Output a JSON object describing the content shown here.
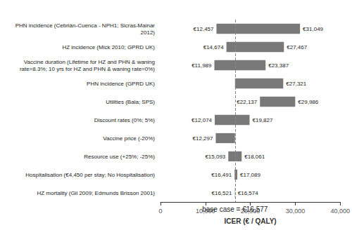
{
  "chart_data": {
    "type": "bar",
    "orientation": "horizontal",
    "xlabel": "ICER (€ / QALY)",
    "xlim": [
      0,
      40000
    ],
    "xticks": [
      0,
      {
        "value": 10000,
        "label": "10,000"
      },
      {
        "value": 20000,
        "label": "20,000"
      },
      {
        "value": 30000,
        "label": "30,000"
      },
      {
        "value": 40000,
        "label": "40,000"
      }
    ],
    "color": "#787878",
    "grid": false,
    "data_labels": true,
    "categories": [
      "PHN incidence (Cebrián-Cuenca - NPH1; Sicras-Mainar\n2012)",
      "HZ incidence (Mick 2010; GPRD UK)",
      "Vaccine duration (Lifetime for HZ and PHN & waning\nrate=8.3%; 10 yrs for HZ and PHN & waning rate=0%)",
      "PHN incidence (GPRD UK)",
      "Utilities (Bala; SPS)",
      "Discount rates (0%; 5%)",
      "Vaccine price (-20%)",
      "Resource use (+25%; -25%)",
      "Hospitalisation (€4,450 per stay; No Hospitalisation)",
      "HZ mortality (Gil 2009; Edmunds Brisson 2001)"
    ],
    "values": [
      [
        12457,
        31049
      ],
      [
        14674,
        27467
      ],
      [
        11989,
        23387
      ],
      [
        16577,
        27321
      ],
      [
        22137,
        29986
      ],
      [
        12074,
        19827
      ],
      [
        12297,
        16577
      ],
      [
        15093,
        18061
      ],
      [
        16491,
        17089
      ],
      [
        16521,
        16574
      ]
    ],
    "value_labels": [
      [
        "€12,457",
        "€31,049"
      ],
      [
        "€14,674",
        "€27,467"
      ],
      [
        "€11,989",
        "€23,387"
      ],
      [
        null,
        "€27,321"
      ],
      [
        "€22,137",
        "€29,986"
      ],
      [
        "€12,074",
        "€19,827"
      ],
      [
        "€12,297",
        null
      ],
      [
        "€15,093",
        "€18,061"
      ],
      [
        "€16,491",
        "€17,089"
      ],
      [
        "€16,521",
        "€16,574"
      ]
    ],
    "reference_line": {
      "value": 16577,
      "label": "base case = €16,577"
    }
  }
}
